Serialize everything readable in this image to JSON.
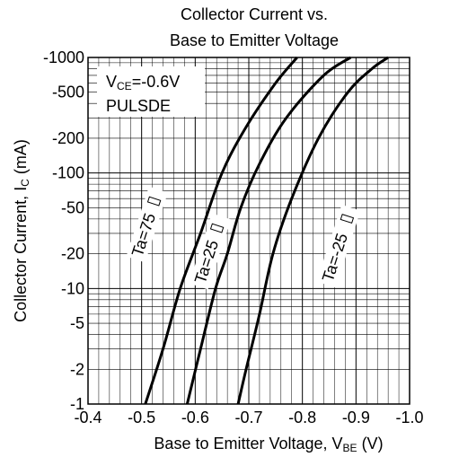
{
  "chart_data": {
    "type": "line",
    "title": [
      "Collector Current vs.",
      "Base to Emitter Voltage"
    ],
    "xlabel": {
      "main": "Base to Emitter Voltage, V",
      "sub": "BE",
      "unit": " (V)"
    },
    "ylabel": {
      "main": "Collector Current, I",
      "sub": "C",
      "unit": " (mA)"
    },
    "xlim": [
      -0.4,
      -1.0
    ],
    "ylim": [
      -1,
      -1000
    ],
    "yscale": "log",
    "grid": true,
    "x_ticks": [
      "-0.4",
      "-0.5",
      "-0.6",
      "-0.7",
      "-0.8",
      "-0.9",
      "-1.0"
    ],
    "y_ticks": [
      {
        "value": -1000,
        "label": "-1000"
      },
      {
        "value": -500,
        "label": "-500"
      },
      {
        "value": -200,
        "label": "-200"
      },
      {
        "value": -100,
        "label": "-100"
      },
      {
        "value": -50,
        "label": "-50"
      },
      {
        "value": -20,
        "label": "-20"
      },
      {
        "value": -10,
        "label": "-10"
      },
      {
        "value": -5,
        "label": "-5"
      },
      {
        "value": -2,
        "label": "-2"
      },
      {
        "value": -1,
        "label": "-1"
      }
    ],
    "annotation": {
      "line1_main": "V",
      "line1_sub": "CE",
      "line1_rest": "=-0.6V",
      "line2": "PULSDE"
    },
    "series": [
      {
        "name": "Ta=75℃",
        "label_text": "Ta=75",
        "x": [
          -0.507,
          -0.54,
          -0.572,
          -0.61,
          -0.65,
          -0.695,
          -0.75,
          -0.79
        ],
        "y": [
          -1,
          -3,
          -10,
          -30,
          -100,
          -250,
          -600,
          -1000
        ]
      },
      {
        "name": "Ta=25℃",
        "label_text": "Ta=25",
        "x": [
          -0.585,
          -0.61,
          -0.638,
          -0.66,
          -0.685,
          -0.72,
          -0.77,
          -0.84,
          -0.89
        ],
        "y": [
          -1,
          -3,
          -10,
          -20,
          -50,
          -120,
          -300,
          -700,
          -1000
        ]
      },
      {
        "name": "Ta=-25℃",
        "label_text": "Ta=-25",
        "x": [
          -0.68,
          -0.695,
          -0.72,
          -0.745,
          -0.78,
          -0.83,
          -0.885,
          -0.93,
          -0.96
        ],
        "y": [
          -1,
          -2,
          -6,
          -20,
          -60,
          -200,
          -500,
          -800,
          -1000
        ]
      }
    ]
  }
}
